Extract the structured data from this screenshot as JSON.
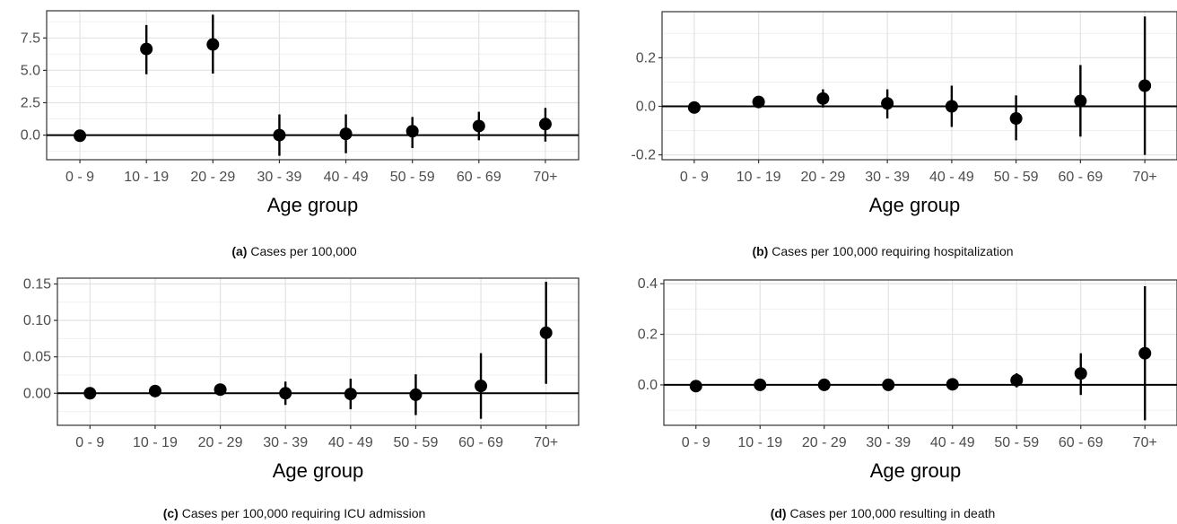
{
  "chart_data": [
    {
      "id": "a",
      "type": "scatter",
      "caption_tag": "(a)",
      "caption_text": "Cases per 100,000",
      "xlabel": "Age group",
      "ylabel": "",
      "categories": [
        "0 - 9",
        "10 - 19",
        "20 - 29",
        "30 - 39",
        "40 - 49",
        "50 - 59",
        "60 - 69",
        "70+"
      ],
      "y": [
        -0.05,
        6.65,
        7.0,
        0.0,
        0.1,
        0.3,
        0.7,
        0.85
      ],
      "ci_low": [
        -0.05,
        4.7,
        4.75,
        -1.6,
        -1.4,
        -1.0,
        -0.4,
        -0.5
      ],
      "ci_high": [
        -0.05,
        8.5,
        9.3,
        1.6,
        1.6,
        1.4,
        1.8,
        2.1
      ],
      "ylim": [
        -1.9,
        9.6
      ],
      "yticks": [
        0.0,
        2.5,
        5.0,
        7.5
      ],
      "ytick_labels": [
        "0.0",
        "2.5",
        "5.0",
        "7.5"
      ],
      "hline": 0,
      "grid": true
    },
    {
      "id": "b",
      "type": "scatter",
      "caption_tag": "(b)",
      "caption_text": "Cases per 100,000 requiring hospitalization",
      "xlabel": "Age group",
      "ylabel": "",
      "categories": [
        "0 - 9",
        "10 - 19",
        "20 - 29",
        "30 - 39",
        "40 - 49",
        "50 - 59",
        "60 - 69",
        "70+"
      ],
      "y": [
        -0.005,
        0.018,
        0.032,
        0.012,
        0.0,
        -0.05,
        0.022,
        0.085
      ],
      "ci_low": [
        -0.005,
        0.005,
        -0.005,
        -0.05,
        -0.085,
        -0.14,
        -0.125,
        -0.2
      ],
      "ci_high": [
        -0.005,
        0.03,
        0.07,
        0.07,
        0.085,
        0.045,
        0.17,
        0.37
      ],
      "ylim": [
        -0.22,
        0.39
      ],
      "yticks": [
        -0.2,
        0.0,
        0.2
      ],
      "ytick_labels": [
        "-0.2",
        "0.0",
        "0.2"
      ],
      "hline": 0,
      "grid": true
    },
    {
      "id": "c",
      "type": "scatter",
      "caption_tag": "(c)",
      "caption_text": "Cases per 100,000 requiring ICU admission",
      "xlabel": "Age group",
      "ylabel": "",
      "categories": [
        "0 - 9",
        "10 - 19",
        "20 - 29",
        "30 - 39",
        "40 - 49",
        "50 - 59",
        "60 - 69",
        "70+"
      ],
      "y": [
        0.0,
        0.003,
        0.005,
        0.0,
        -0.001,
        -0.002,
        0.01,
        0.083
      ],
      "ci_low": [
        0.0,
        0.0,
        0.0,
        -0.016,
        -0.022,
        -0.03,
        -0.035,
        0.013
      ],
      "ci_high": [
        0.0,
        0.006,
        0.01,
        0.016,
        0.02,
        0.026,
        0.055,
        0.153
      ],
      "ylim": [
        -0.044,
        0.158
      ],
      "yticks": [
        0.0,
        0.05,
        0.1,
        0.15
      ],
      "ytick_labels": [
        "0.00",
        "0.05",
        "0.10",
        "0.15"
      ],
      "hline": 0,
      "grid": true
    },
    {
      "id": "d",
      "type": "scatter",
      "caption_tag": "(d)",
      "caption_text": "Cases per 100,000 resulting in death",
      "xlabel": "Age group",
      "ylabel": "",
      "categories": [
        "0 - 9",
        "10 - 19",
        "20 - 29",
        "30 - 39",
        "40 - 49",
        "50 - 59",
        "60 - 69",
        "70+"
      ],
      "y": [
        -0.005,
        0.0,
        0.0,
        0.0,
        0.002,
        0.018,
        0.045,
        0.125
      ],
      "ci_low": [
        -0.005,
        0.0,
        0.0,
        0.0,
        -0.01,
        -0.01,
        -0.04,
        -0.14
      ],
      "ci_high": [
        -0.005,
        0.0,
        0.0,
        0.0,
        0.014,
        0.046,
        0.125,
        0.39
      ],
      "ylim": [
        -0.16,
        0.415
      ],
      "yticks": [
        0.0,
        0.2,
        0.4
      ],
      "ytick_labels": [
        "0.0",
        "0.2",
        "0.4"
      ],
      "hline": 0,
      "grid": true
    }
  ]
}
